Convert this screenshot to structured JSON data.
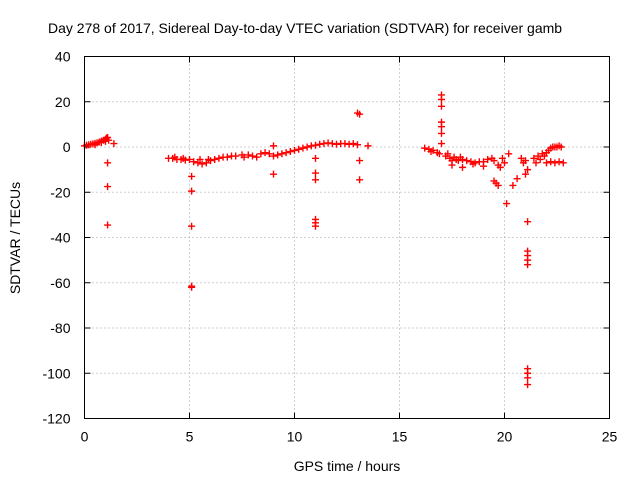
{
  "chart_data": {
    "type": "scatter",
    "title": "Day 278 of 2017, Sidereal Day-to-day VTEC variation (SDTVAR) for receiver gamb",
    "xlabel": "GPS time / hours",
    "ylabel": "SDTVAR / TECUs",
    "xlim": [
      0,
      25
    ],
    "ylim": [
      -120,
      40
    ],
    "xticks": [
      0,
      5,
      10,
      15,
      20,
      25
    ],
    "yticks": [
      -120,
      -100,
      -80,
      -60,
      -40,
      -20,
      0,
      20,
      40
    ],
    "grid": true,
    "marker": "+",
    "color": "#ff0000",
    "series": [
      {
        "name": "SDTVAR",
        "points": [
          [
            0.0,
            0.5
          ],
          [
            0.1,
            0.8
          ],
          [
            0.2,
            1.0
          ],
          [
            0.3,
            1.2
          ],
          [
            0.4,
            1.4
          ],
          [
            0.5,
            1.6
          ],
          [
            0.6,
            1.9
          ],
          [
            0.7,
            2.2
          ],
          [
            0.8,
            2.6
          ],
          [
            0.9,
            3.0
          ],
          [
            1.0,
            3.5
          ],
          [
            1.05,
            4.0
          ],
          [
            1.1,
            4.2
          ],
          [
            0.5,
            1.0
          ],
          [
            0.8,
            2.0
          ],
          [
            1.0,
            2.5
          ],
          [
            1.15,
            3.0
          ],
          [
            1.4,
            1.5
          ],
          [
            1.1,
            -7
          ],
          [
            1.1,
            -17.5
          ],
          [
            1.1,
            -34.5
          ],
          [
            4.0,
            -5
          ],
          [
            4.2,
            -5
          ],
          [
            4.4,
            -5.5
          ],
          [
            4.6,
            -5.5
          ],
          [
            4.8,
            -5.8
          ],
          [
            5.0,
            -5.5
          ],
          [
            4.3,
            -4.5
          ],
          [
            4.7,
            -5.0
          ],
          [
            5.2,
            -6.5
          ],
          [
            5.4,
            -7.0
          ],
          [
            5.6,
            -7.5
          ],
          [
            5.8,
            -7.0
          ],
          [
            5.5,
            -5.5
          ],
          [
            5.9,
            -5.5
          ],
          [
            6.0,
            -6.0
          ],
          [
            6.2,
            -5.5
          ],
          [
            6.4,
            -5.0
          ],
          [
            6.6,
            -4.5
          ],
          [
            6.8,
            -4.5
          ],
          [
            7.0,
            -4.0
          ],
          [
            7.2,
            -4.0
          ],
          [
            7.5,
            -3.5
          ],
          [
            7.6,
            -4.5
          ],
          [
            7.8,
            -3.5
          ],
          [
            8.0,
            -4.0
          ],
          [
            8.2,
            -4.5
          ],
          [
            8.4,
            -3.0
          ],
          [
            8.6,
            -2.5
          ],
          [
            8.8,
            -3.0
          ],
          [
            9.0,
            -4.0
          ],
          [
            9.0,
            0.5
          ],
          [
            9.2,
            -3.5
          ],
          [
            9.4,
            -3.0
          ],
          [
            9.6,
            -2.5
          ],
          [
            9.8,
            -2.0
          ],
          [
            10.0,
            -1.5
          ],
          [
            10.2,
            -1.0
          ],
          [
            10.4,
            -0.5
          ],
          [
            10.6,
            0.0
          ],
          [
            10.8,
            0.5
          ],
          [
            11.0,
            0.8
          ],
          [
            11.2,
            1.2
          ],
          [
            11.4,
            1.5
          ],
          [
            11.6,
            1.8
          ],
          [
            11.8,
            1.5
          ],
          [
            12.0,
            1.2
          ],
          [
            12.2,
            1.5
          ],
          [
            12.4,
            1.5
          ],
          [
            12.6,
            1.2
          ],
          [
            12.8,
            1.5
          ],
          [
            13.0,
            1.0
          ],
          [
            13.5,
            0.5
          ],
          [
            5.1,
            -13
          ],
          [
            5.1,
            -19.5
          ],
          [
            5.1,
            -35
          ],
          [
            5.1,
            -61.5
          ],
          [
            5.1,
            -62
          ],
          [
            9.0,
            -12
          ],
          [
            11.0,
            -5
          ],
          [
            11.0,
            -11.5
          ],
          [
            11.0,
            -14.5
          ],
          [
            11.0,
            -32
          ],
          [
            11.0,
            -33.5
          ],
          [
            11.0,
            -35
          ],
          [
            13.0,
            15
          ],
          [
            13.1,
            14.5
          ],
          [
            13.1,
            -6
          ],
          [
            13.1,
            -14.5
          ],
          [
            16.2,
            -0.5
          ],
          [
            16.4,
            -1.0
          ],
          [
            16.6,
            -1.5
          ],
          [
            16.8,
            -2.5
          ],
          [
            16.5,
            -2.0
          ],
          [
            16.9,
            -3.0
          ],
          [
            17.0,
            23
          ],
          [
            17.0,
            21
          ],
          [
            17.0,
            18
          ],
          [
            17.0,
            11
          ],
          [
            17.0,
            9
          ],
          [
            17.0,
            6
          ],
          [
            17.0,
            1.5
          ],
          [
            17.2,
            -4
          ],
          [
            17.3,
            -3
          ],
          [
            17.4,
            -5
          ],
          [
            17.5,
            -6
          ],
          [
            17.6,
            -4.5
          ],
          [
            17.7,
            -5.5
          ],
          [
            17.8,
            -6.0
          ],
          [
            17.9,
            -4.5
          ],
          [
            18.0,
            -5.5
          ],
          [
            18.2,
            -6.0
          ],
          [
            18.4,
            -6.5
          ],
          [
            18.6,
            -7.0
          ],
          [
            18.8,
            -6.5
          ],
          [
            19.0,
            -6.5
          ],
          [
            19.2,
            -5.5
          ],
          [
            19.4,
            -5.0
          ],
          [
            17.5,
            -8.0
          ],
          [
            18.0,
            -9.0
          ],
          [
            18.5,
            -7.5
          ],
          [
            19.0,
            -8.5
          ],
          [
            19.5,
            -15
          ],
          [
            19.6,
            -16
          ],
          [
            19.7,
            -17
          ],
          [
            19.5,
            -6
          ],
          [
            19.7,
            -8
          ],
          [
            19.8,
            -9
          ],
          [
            19.9,
            -5
          ],
          [
            20.0,
            -7
          ],
          [
            20.1,
            -25
          ],
          [
            20.2,
            -3
          ],
          [
            20.4,
            -17
          ],
          [
            20.6,
            -14
          ],
          [
            20.8,
            -5
          ],
          [
            20.9,
            -7
          ],
          [
            21.0,
            -6
          ],
          [
            21.0,
            -12
          ],
          [
            21.1,
            -10
          ],
          [
            21.1,
            -33
          ],
          [
            21.1,
            -46
          ],
          [
            21.1,
            -48
          ],
          [
            21.1,
            -50
          ],
          [
            21.1,
            -52
          ],
          [
            21.1,
            -98
          ],
          [
            21.1,
            -100
          ],
          [
            21.1,
            -102
          ],
          [
            21.1,
            -105
          ],
          [
            21.4,
            -5
          ],
          [
            21.5,
            -7
          ],
          [
            21.6,
            -4
          ],
          [
            21.7,
            -5.5
          ],
          [
            21.8,
            -3
          ],
          [
            21.9,
            -4
          ],
          [
            22.0,
            -2.5
          ],
          [
            22.1,
            -1.5
          ],
          [
            22.2,
            -0.5
          ],
          [
            22.3,
            0.0
          ],
          [
            22.4,
            0.0
          ],
          [
            22.5,
            0.0
          ],
          [
            22.6,
            0.5
          ],
          [
            22.7,
            0.0
          ],
          [
            22.0,
            -7
          ],
          [
            22.2,
            -6.5
          ],
          [
            22.4,
            -7
          ],
          [
            22.6,
            -6.5
          ],
          [
            22.8,
            -7
          ]
        ]
      }
    ]
  }
}
